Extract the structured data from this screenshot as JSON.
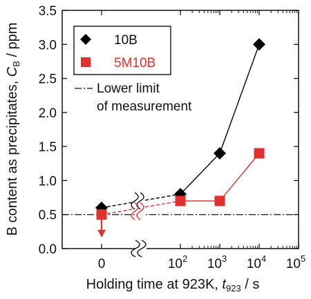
{
  "chart_data": {
    "type": "line",
    "title": "",
    "xlabel": {
      "main": "Holding time at 923K, ",
      "var": "t",
      "sub": "923",
      "unit": " / s"
    },
    "ylabel": {
      "main": "B content as precipitates, ",
      "var": "C",
      "sub": "B",
      "unit": " / ppm"
    },
    "x_scale": "log (10^2–10^5) with broken axis; first point at t = 0",
    "y_ticks": [
      "0.0",
      "0.5",
      "1.0",
      "1.5",
      "2.0",
      "2.5",
      "3.0",
      "3.5"
    ],
    "ylim": [
      0,
      3.5
    ],
    "x_ticks": [
      {
        "label": "0",
        "x": 0
      },
      {
        "label": "10",
        "sup": "2",
        "x": 100
      },
      {
        "label": "10",
        "sup": "3",
        "x": 1000
      },
      {
        "label": "10",
        "sup": "4",
        "x": 10000
      },
      {
        "label": "10",
        "sup": "5",
        "x": 100000
      }
    ],
    "series": [
      {
        "name": "10B",
        "color": "#000000",
        "marker": "diamond",
        "points": [
          {
            "x": 0,
            "y": 0.6
          },
          {
            "x": 100,
            "y": 0.8
          },
          {
            "x": 1000,
            "y": 1.4
          },
          {
            "x": 10000,
            "y": 3.0
          }
        ]
      },
      {
        "name": "5M10B",
        "color": "#e03030",
        "marker": "square",
        "points": [
          {
            "x": 0,
            "y": 0.5,
            "below_limit": true
          },
          {
            "x": 100,
            "y": 0.7
          },
          {
            "x": 1000,
            "y": 0.7
          },
          {
            "x": 10000,
            "y": 1.4
          }
        ]
      }
    ],
    "reference_line": {
      "label_line1": "Lower limit",
      "label_line2": "of measurement",
      "y": 0.5,
      "style": "dash-dot"
    },
    "legend_position": "top-left"
  }
}
